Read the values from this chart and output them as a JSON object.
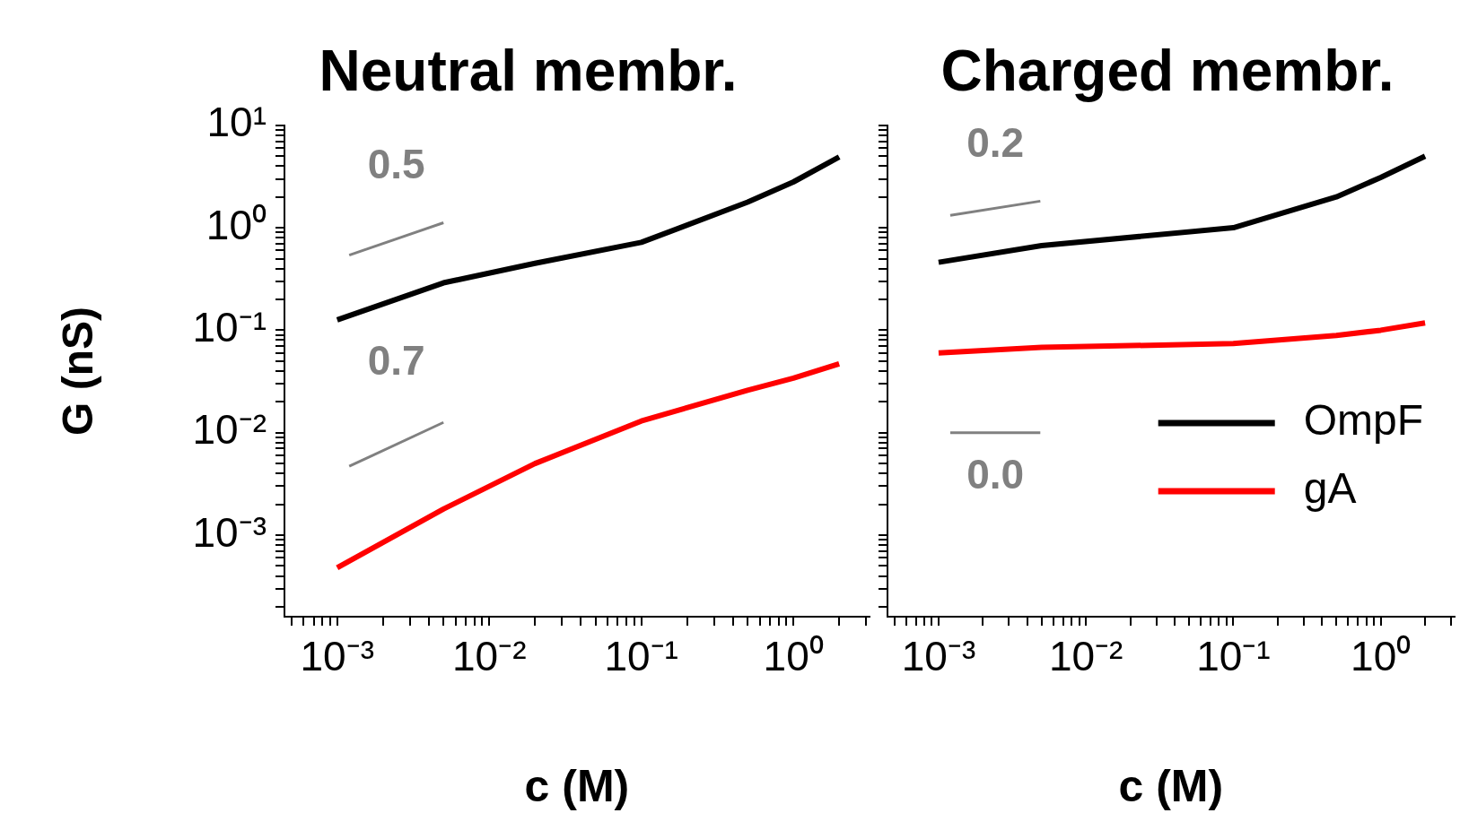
{
  "chart_data": [
    {
      "type": "line",
      "title": "Neutral membr.",
      "xlabel": "c (M)",
      "ylabel": "G (nS)",
      "log": "xy",
      "marker": "none",
      "tick_labels": true,
      "xlim": [
        0.00045,
        3.16
      ],
      "ylim": [
        0.00016,
        10
      ],
      "xticks": [
        {
          "value": 0.0005,
          "label": null
        },
        {
          "value": 0.0006,
          "label": null
        },
        {
          "value": 0.0007,
          "label": null
        },
        {
          "value": 0.0008,
          "label": null
        },
        {
          "value": 0.0009,
          "label": null
        },
        {
          "value": 0.001,
          "label": "10⁻³"
        },
        {
          "value": 0.002,
          "label": null
        },
        {
          "value": 0.003,
          "label": null
        },
        {
          "value": 0.004,
          "label": null
        },
        {
          "value": 0.005,
          "label": null
        },
        {
          "value": 0.006,
          "label": null
        },
        {
          "value": 0.007,
          "label": null
        },
        {
          "value": 0.008,
          "label": null
        },
        {
          "value": 0.009,
          "label": null
        },
        {
          "value": 0.01,
          "label": "10⁻²"
        },
        {
          "value": 0.02,
          "label": null
        },
        {
          "value": 0.03,
          "label": null
        },
        {
          "value": 0.04,
          "label": null
        },
        {
          "value": 0.05,
          "label": null
        },
        {
          "value": 0.06,
          "label": null
        },
        {
          "value": 0.07,
          "label": null
        },
        {
          "value": 0.08,
          "label": null
        },
        {
          "value": 0.09,
          "label": null
        },
        {
          "value": 0.1,
          "label": "10⁻¹"
        },
        {
          "value": 0.2,
          "label": null
        },
        {
          "value": 0.3,
          "label": null
        },
        {
          "value": 0.4,
          "label": null
        },
        {
          "value": 0.5,
          "label": null
        },
        {
          "value": 0.6,
          "label": null
        },
        {
          "value": 0.7,
          "label": null
        },
        {
          "value": 0.8,
          "label": null
        },
        {
          "value": 0.9,
          "label": null
        },
        {
          "value": 1,
          "label": "10⁰"
        },
        {
          "value": 2,
          "label": null
        },
        {
          "value": 3,
          "label": null
        }
      ],
      "yticks": [
        {
          "value": 0.0002,
          "label": null
        },
        {
          "value": 0.0003,
          "label": null
        },
        {
          "value": 0.0004,
          "label": null
        },
        {
          "value": 0.0005,
          "label": null
        },
        {
          "value": 0.0006,
          "label": null
        },
        {
          "value": 0.0007,
          "label": null
        },
        {
          "value": 0.0008,
          "label": null
        },
        {
          "value": 0.0009,
          "label": null
        },
        {
          "value": 0.001,
          "label": "10⁻³"
        },
        {
          "value": 0.002,
          "label": null
        },
        {
          "value": 0.003,
          "label": null
        },
        {
          "value": 0.004,
          "label": null
        },
        {
          "value": 0.005,
          "label": null
        },
        {
          "value": 0.006,
          "label": null
        },
        {
          "value": 0.007,
          "label": null
        },
        {
          "value": 0.008,
          "label": null
        },
        {
          "value": 0.009,
          "label": null
        },
        {
          "value": 0.01,
          "label": "10⁻²"
        },
        {
          "value": 0.02,
          "label": null
        },
        {
          "value": 0.03,
          "label": null
        },
        {
          "value": 0.04,
          "label": null
        },
        {
          "value": 0.05,
          "label": null
        },
        {
          "value": 0.06,
          "label": null
        },
        {
          "value": 0.07,
          "label": null
        },
        {
          "value": 0.08,
          "label": null
        },
        {
          "value": 0.09,
          "label": null
        },
        {
          "value": 0.1,
          "label": "10⁻¹"
        },
        {
          "value": 0.2,
          "label": null
        },
        {
          "value": 0.3,
          "label": null
        },
        {
          "value": 0.4,
          "label": null
        },
        {
          "value": 0.5,
          "label": null
        },
        {
          "value": 0.6,
          "label": null
        },
        {
          "value": 0.7,
          "label": null
        },
        {
          "value": 0.8,
          "label": null
        },
        {
          "value": 0.9,
          "label": null
        },
        {
          "value": 1,
          "label": "10⁰"
        },
        {
          "value": 2,
          "label": null
        },
        {
          "value": 3,
          "label": null
        },
        {
          "value": 4,
          "label": null
        },
        {
          "value": 5,
          "label": null
        },
        {
          "value": 6,
          "label": null
        },
        {
          "value": 7,
          "label": null
        },
        {
          "value": 8,
          "label": null
        },
        {
          "value": 9,
          "label": null
        },
        {
          "value": 10,
          "label": "10¹"
        }
      ],
      "series": [
        {
          "color": "#000000",
          "x": [
            0.001,
            0.005,
            0.02,
            0.1,
            0.5,
            1,
            2
          ],
          "values": [
            0.126,
            0.29,
            0.45,
            0.72,
            1.78,
            2.8,
            4.9
          ]
        },
        {
          "color": "#ff0000",
          "x": [
            0.001,
            0.005,
            0.02,
            0.1,
            0.5,
            1,
            2
          ],
          "values": [
            0.00048,
            0.0018,
            0.005,
            0.013,
            0.026,
            0.034,
            0.047
          ]
        },
        {
          "color": "#808080",
          "x": [
            0.0012,
            0.005
          ],
          "values": [
            0.54,
            1.12
          ]
        },
        {
          "color": "#808080",
          "x": [
            0.0012,
            0.005
          ],
          "values": [
            0.0047,
            0.0126
          ]
        }
      ],
      "annotations": [
        "0.5",
        "0.7"
      ]
    },
    {
      "type": "line",
      "title": "Charged membr.",
      "xlabel": "c (M)",
      "log": "xy",
      "marker": "none",
      "tick_labels": "x",
      "legend": "bottom right",
      "xlim": [
        0.00045,
        3.16
      ],
      "ylim": [
        0.00016,
        10
      ],
      "xticks": [
        {
          "value": 0.0005,
          "label": null
        },
        {
          "value": 0.0006,
          "label": null
        },
        {
          "value": 0.0007,
          "label": null
        },
        {
          "value": 0.0008,
          "label": null
        },
        {
          "value": 0.0009,
          "label": null
        },
        {
          "value": 0.001,
          "label": "10⁻³"
        },
        {
          "value": 0.002,
          "label": null
        },
        {
          "value": 0.003,
          "label": null
        },
        {
          "value": 0.004,
          "label": null
        },
        {
          "value": 0.005,
          "label": null
        },
        {
          "value": 0.006,
          "label": null
        },
        {
          "value": 0.007,
          "label": null
        },
        {
          "value": 0.008,
          "label": null
        },
        {
          "value": 0.009,
          "label": null
        },
        {
          "value": 0.01,
          "label": "10⁻²"
        },
        {
          "value": 0.02,
          "label": null
        },
        {
          "value": 0.03,
          "label": null
        },
        {
          "value": 0.04,
          "label": null
        },
        {
          "value": 0.05,
          "label": null
        },
        {
          "value": 0.06,
          "label": null
        },
        {
          "value": 0.07,
          "label": null
        },
        {
          "value": 0.08,
          "label": null
        },
        {
          "value": 0.09,
          "label": null
        },
        {
          "value": 0.1,
          "label": "10⁻¹"
        },
        {
          "value": 0.2,
          "label": null
        },
        {
          "value": 0.3,
          "label": null
        },
        {
          "value": 0.4,
          "label": null
        },
        {
          "value": 0.5,
          "label": null
        },
        {
          "value": 0.6,
          "label": null
        },
        {
          "value": 0.7,
          "label": null
        },
        {
          "value": 0.8,
          "label": null
        },
        {
          "value": 0.9,
          "label": null
        },
        {
          "value": 1,
          "label": "10⁰"
        },
        {
          "value": 2,
          "label": null
        },
        {
          "value": 3,
          "label": null
        }
      ],
      "yticks": [
        {
          "value": 0.0002,
          "label": null
        },
        {
          "value": 0.0003,
          "label": null
        },
        {
          "value": 0.0004,
          "label": null
        },
        {
          "value": 0.0005,
          "label": null
        },
        {
          "value": 0.0006,
          "label": null
        },
        {
          "value": 0.0007,
          "label": null
        },
        {
          "value": 0.0008,
          "label": null
        },
        {
          "value": 0.0009,
          "label": null
        },
        {
          "value": 0.001,
          "label": null
        },
        {
          "value": 0.002,
          "label": null
        },
        {
          "value": 0.003,
          "label": null
        },
        {
          "value": 0.004,
          "label": null
        },
        {
          "value": 0.005,
          "label": null
        },
        {
          "value": 0.006,
          "label": null
        },
        {
          "value": 0.007,
          "label": null
        },
        {
          "value": 0.008,
          "label": null
        },
        {
          "value": 0.009,
          "label": null
        },
        {
          "value": 0.01,
          "label": null
        },
        {
          "value": 0.02,
          "label": null
        },
        {
          "value": 0.03,
          "label": null
        },
        {
          "value": 0.04,
          "label": null
        },
        {
          "value": 0.05,
          "label": null
        },
        {
          "value": 0.06,
          "label": null
        },
        {
          "value": 0.07,
          "label": null
        },
        {
          "value": 0.08,
          "label": null
        },
        {
          "value": 0.09,
          "label": null
        },
        {
          "value": 0.1,
          "label": null
        },
        {
          "value": 0.2,
          "label": null
        },
        {
          "value": 0.3,
          "label": null
        },
        {
          "value": 0.4,
          "label": null
        },
        {
          "value": 0.5,
          "label": null
        },
        {
          "value": 0.6,
          "label": null
        },
        {
          "value": 0.7,
          "label": null
        },
        {
          "value": 0.8,
          "label": null
        },
        {
          "value": 0.9,
          "label": null
        },
        {
          "value": 1,
          "label": null
        },
        {
          "value": 2,
          "label": null
        },
        {
          "value": 3,
          "label": null
        },
        {
          "value": 4,
          "label": null
        },
        {
          "value": 5,
          "label": null
        },
        {
          "value": 6,
          "label": null
        },
        {
          "value": 7,
          "label": null
        },
        {
          "value": 8,
          "label": null
        },
        {
          "value": 9,
          "label": null
        },
        {
          "value": 10,
          "label": null
        }
      ],
      "series": [
        {
          "name": "OmpF",
          "color": "#000000",
          "x": [
            0.001,
            0.005,
            0.1,
            0.5,
            1,
            2
          ],
          "values": [
            0.46,
            0.67,
            1.0,
            2.0,
            3.1,
            5.0
          ]
        },
        {
          "name": "gA",
          "color": "#ff0000",
          "x": [
            0.001,
            0.005,
            0.1,
            0.5,
            1,
            2
          ],
          "values": [
            0.06,
            0.068,
            0.074,
            0.089,
            0.1,
            0.118
          ]
        },
        {
          "color": "#808080",
          "x": [
            0.0012,
            0.0049
          ],
          "values": [
            1.32,
            1.82
          ]
        },
        {
          "color": "#808080",
          "x": [
            0.0012,
            0.0049
          ],
          "values": [
            0.01,
            0.01
          ]
        }
      ],
      "annotations": [
        "0.2",
        "0.0"
      ]
    }
  ]
}
